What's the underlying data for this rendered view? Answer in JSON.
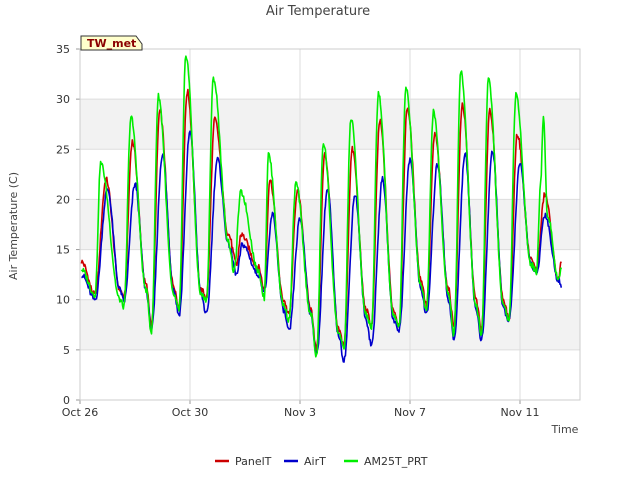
{
  "chart_data": {
    "type": "line",
    "title": "Air Temperature",
    "xlabel": "Time",
    "ylabel": "Air Temperature (C)",
    "badge": "TW_met",
    "ylim": [
      0,
      35
    ],
    "yticks": [
      0,
      5,
      10,
      15,
      20,
      25,
      30,
      35
    ],
    "xlim_days": [
      0,
      18
    ],
    "xticks": [
      {
        "label": "Oct 26",
        "day": 0
      },
      {
        "label": "Oct 30",
        "day": 4
      },
      {
        "label": "Nov 3",
        "day": 8
      },
      {
        "label": "Nov 7",
        "day": 12
      },
      {
        "label": "Nov 11",
        "day": 16
      }
    ],
    "grid": true,
    "legend_position": "bottom",
    "colors": {
      "PanelT": "#cc0000",
      "AirT": "#0000cc",
      "AM25T_PRT": "#00ee00"
    },
    "series": [
      {
        "name": "PanelT",
        "day_extrema": [
          [
            0.05,
            13.8
          ],
          [
            0.55,
            10.5
          ],
          [
            0.95,
            22.0
          ],
          [
            1.45,
            11.0
          ],
          [
            1.6,
            10.2
          ],
          [
            1.9,
            25.8
          ],
          [
            2.4,
            11.5
          ],
          [
            2.6,
            7.5
          ],
          [
            2.9,
            28.8
          ],
          [
            3.4,
            11.5
          ],
          [
            3.6,
            9.2
          ],
          [
            3.9,
            30.8
          ],
          [
            4.4,
            11.0
          ],
          [
            4.6,
            10.3
          ],
          [
            4.9,
            28.0
          ],
          [
            5.4,
            16.5
          ],
          [
            5.7,
            13.5
          ],
          [
            5.85,
            16.5
          ],
          [
            6.5,
            13.2
          ],
          [
            6.7,
            11.0
          ],
          [
            6.9,
            22.0
          ],
          [
            7.4,
            10.0
          ],
          [
            7.6,
            8.5
          ],
          [
            7.9,
            20.8
          ],
          [
            8.4,
            9.0
          ],
          [
            8.6,
            5.0
          ],
          [
            8.9,
            24.5
          ],
          [
            9.4,
            7.0
          ],
          [
            9.6,
            5.5
          ],
          [
            9.9,
            25.0
          ],
          [
            10.4,
            9.0
          ],
          [
            10.6,
            7.5
          ],
          [
            10.9,
            27.8
          ],
          [
            11.4,
            9.0
          ],
          [
            11.6,
            7.5
          ],
          [
            11.9,
            29.2
          ],
          [
            12.4,
            12.0
          ],
          [
            12.6,
            9.5
          ],
          [
            12.9,
            26.5
          ],
          [
            13.4,
            11.0
          ],
          [
            13.6,
            7.5
          ],
          [
            13.9,
            29.5
          ],
          [
            14.4,
            10.0
          ],
          [
            14.6,
            7.0
          ],
          [
            14.9,
            29.0
          ],
          [
            15.4,
            10.0
          ],
          [
            15.6,
            8.0
          ],
          [
            15.9,
            26.5
          ],
          [
            16.4,
            14.0
          ],
          [
            16.6,
            13.0
          ],
          [
            16.9,
            20.5
          ],
          [
            17.4,
            12.0
          ],
          [
            17.5,
            13.8
          ]
        ]
      },
      {
        "name": "AirT",
        "day_extrema": [
          [
            0.05,
            12.5
          ],
          [
            0.55,
            10.0
          ],
          [
            1.0,
            21.0
          ],
          [
            1.45,
            11.0
          ],
          [
            1.6,
            9.8
          ],
          [
            2.0,
            21.5
          ],
          [
            2.4,
            11.0
          ],
          [
            2.6,
            7.0
          ],
          [
            3.0,
            24.5
          ],
          [
            3.4,
            11.0
          ],
          [
            3.6,
            8.5
          ],
          [
            4.0,
            26.7
          ],
          [
            4.4,
            10.5
          ],
          [
            4.6,
            8.5
          ],
          [
            5.0,
            24.0
          ],
          [
            5.4,
            15.5
          ],
          [
            5.7,
            12.5
          ],
          [
            5.9,
            15.5
          ],
          [
            6.5,
            12.5
          ],
          [
            6.7,
            10.8
          ],
          [
            7.0,
            18.5
          ],
          [
            7.4,
            9.0
          ],
          [
            7.6,
            6.8
          ],
          [
            8.0,
            18.0
          ],
          [
            8.4,
            8.5
          ],
          [
            8.6,
            4.5
          ],
          [
            9.0,
            21.0
          ],
          [
            9.4,
            6.5
          ],
          [
            9.6,
            4.0
          ],
          [
            10.0,
            20.5
          ],
          [
            10.4,
            8.0
          ],
          [
            10.6,
            5.5
          ],
          [
            11.0,
            22.0
          ],
          [
            11.4,
            8.0
          ],
          [
            11.6,
            7.0
          ],
          [
            12.0,
            24.0
          ],
          [
            12.4,
            11.0
          ],
          [
            12.6,
            8.5
          ],
          [
            13.0,
            23.5
          ],
          [
            13.4,
            10.0
          ],
          [
            13.6,
            6.0
          ],
          [
            14.0,
            24.5
          ],
          [
            14.4,
            9.0
          ],
          [
            14.6,
            6.0
          ],
          [
            15.0,
            24.8
          ],
          [
            15.4,
            9.0
          ],
          [
            15.6,
            8.0
          ],
          [
            16.0,
            23.5
          ],
          [
            16.4,
            13.5
          ],
          [
            16.6,
            12.5
          ],
          [
            16.9,
            18.5
          ],
          [
            17.4,
            12.0
          ],
          [
            17.5,
            11.2
          ]
        ]
      },
      {
        "name": "AM25T_PRT",
        "day_extrema": [
          [
            0.05,
            13.0
          ],
          [
            0.55,
            10.5
          ],
          [
            0.75,
            23.6
          ],
          [
            1.45,
            10.0
          ],
          [
            1.6,
            9.3
          ],
          [
            1.85,
            28.2
          ],
          [
            2.4,
            11.0
          ],
          [
            2.6,
            6.8
          ],
          [
            2.85,
            30.3
          ],
          [
            3.4,
            10.5
          ],
          [
            3.6,
            9.0
          ],
          [
            3.85,
            34.4
          ],
          [
            4.4,
            10.5
          ],
          [
            4.6,
            10.0
          ],
          [
            4.85,
            32.1
          ],
          [
            5.4,
            15.8
          ],
          [
            5.6,
            12.8
          ],
          [
            5.85,
            20.7
          ],
          [
            6.5,
            12.8
          ],
          [
            6.7,
            10.2
          ],
          [
            6.85,
            24.5
          ],
          [
            7.4,
            9.5
          ],
          [
            7.6,
            8.0
          ],
          [
            7.85,
            21.6
          ],
          [
            8.4,
            8.5
          ],
          [
            8.6,
            4.3
          ],
          [
            8.85,
            25.6
          ],
          [
            9.4,
            6.8
          ],
          [
            9.6,
            5.0
          ],
          [
            9.85,
            28.1
          ],
          [
            10.4,
            8.5
          ],
          [
            10.6,
            7.2
          ],
          [
            10.85,
            30.6
          ],
          [
            11.4,
            8.5
          ],
          [
            11.6,
            7.2
          ],
          [
            11.85,
            31.2
          ],
          [
            12.4,
            11.5
          ],
          [
            12.6,
            9.0
          ],
          [
            12.85,
            28.7
          ],
          [
            13.4,
            10.5
          ],
          [
            13.6,
            6.5
          ],
          [
            13.85,
            32.8
          ],
          [
            14.4,
            9.5
          ],
          [
            14.6,
            6.5
          ],
          [
            14.85,
            32.1
          ],
          [
            15.4,
            9.5
          ],
          [
            15.6,
            8.0
          ],
          [
            15.85,
            30.4
          ],
          [
            16.4,
            13.5
          ],
          [
            16.6,
            12.8
          ],
          [
            16.75,
            21.5
          ],
          [
            16.85,
            28.3
          ],
          [
            17.0,
            18.5
          ],
          [
            17.4,
            12.0
          ],
          [
            17.5,
            13.2
          ]
        ]
      }
    ]
  }
}
